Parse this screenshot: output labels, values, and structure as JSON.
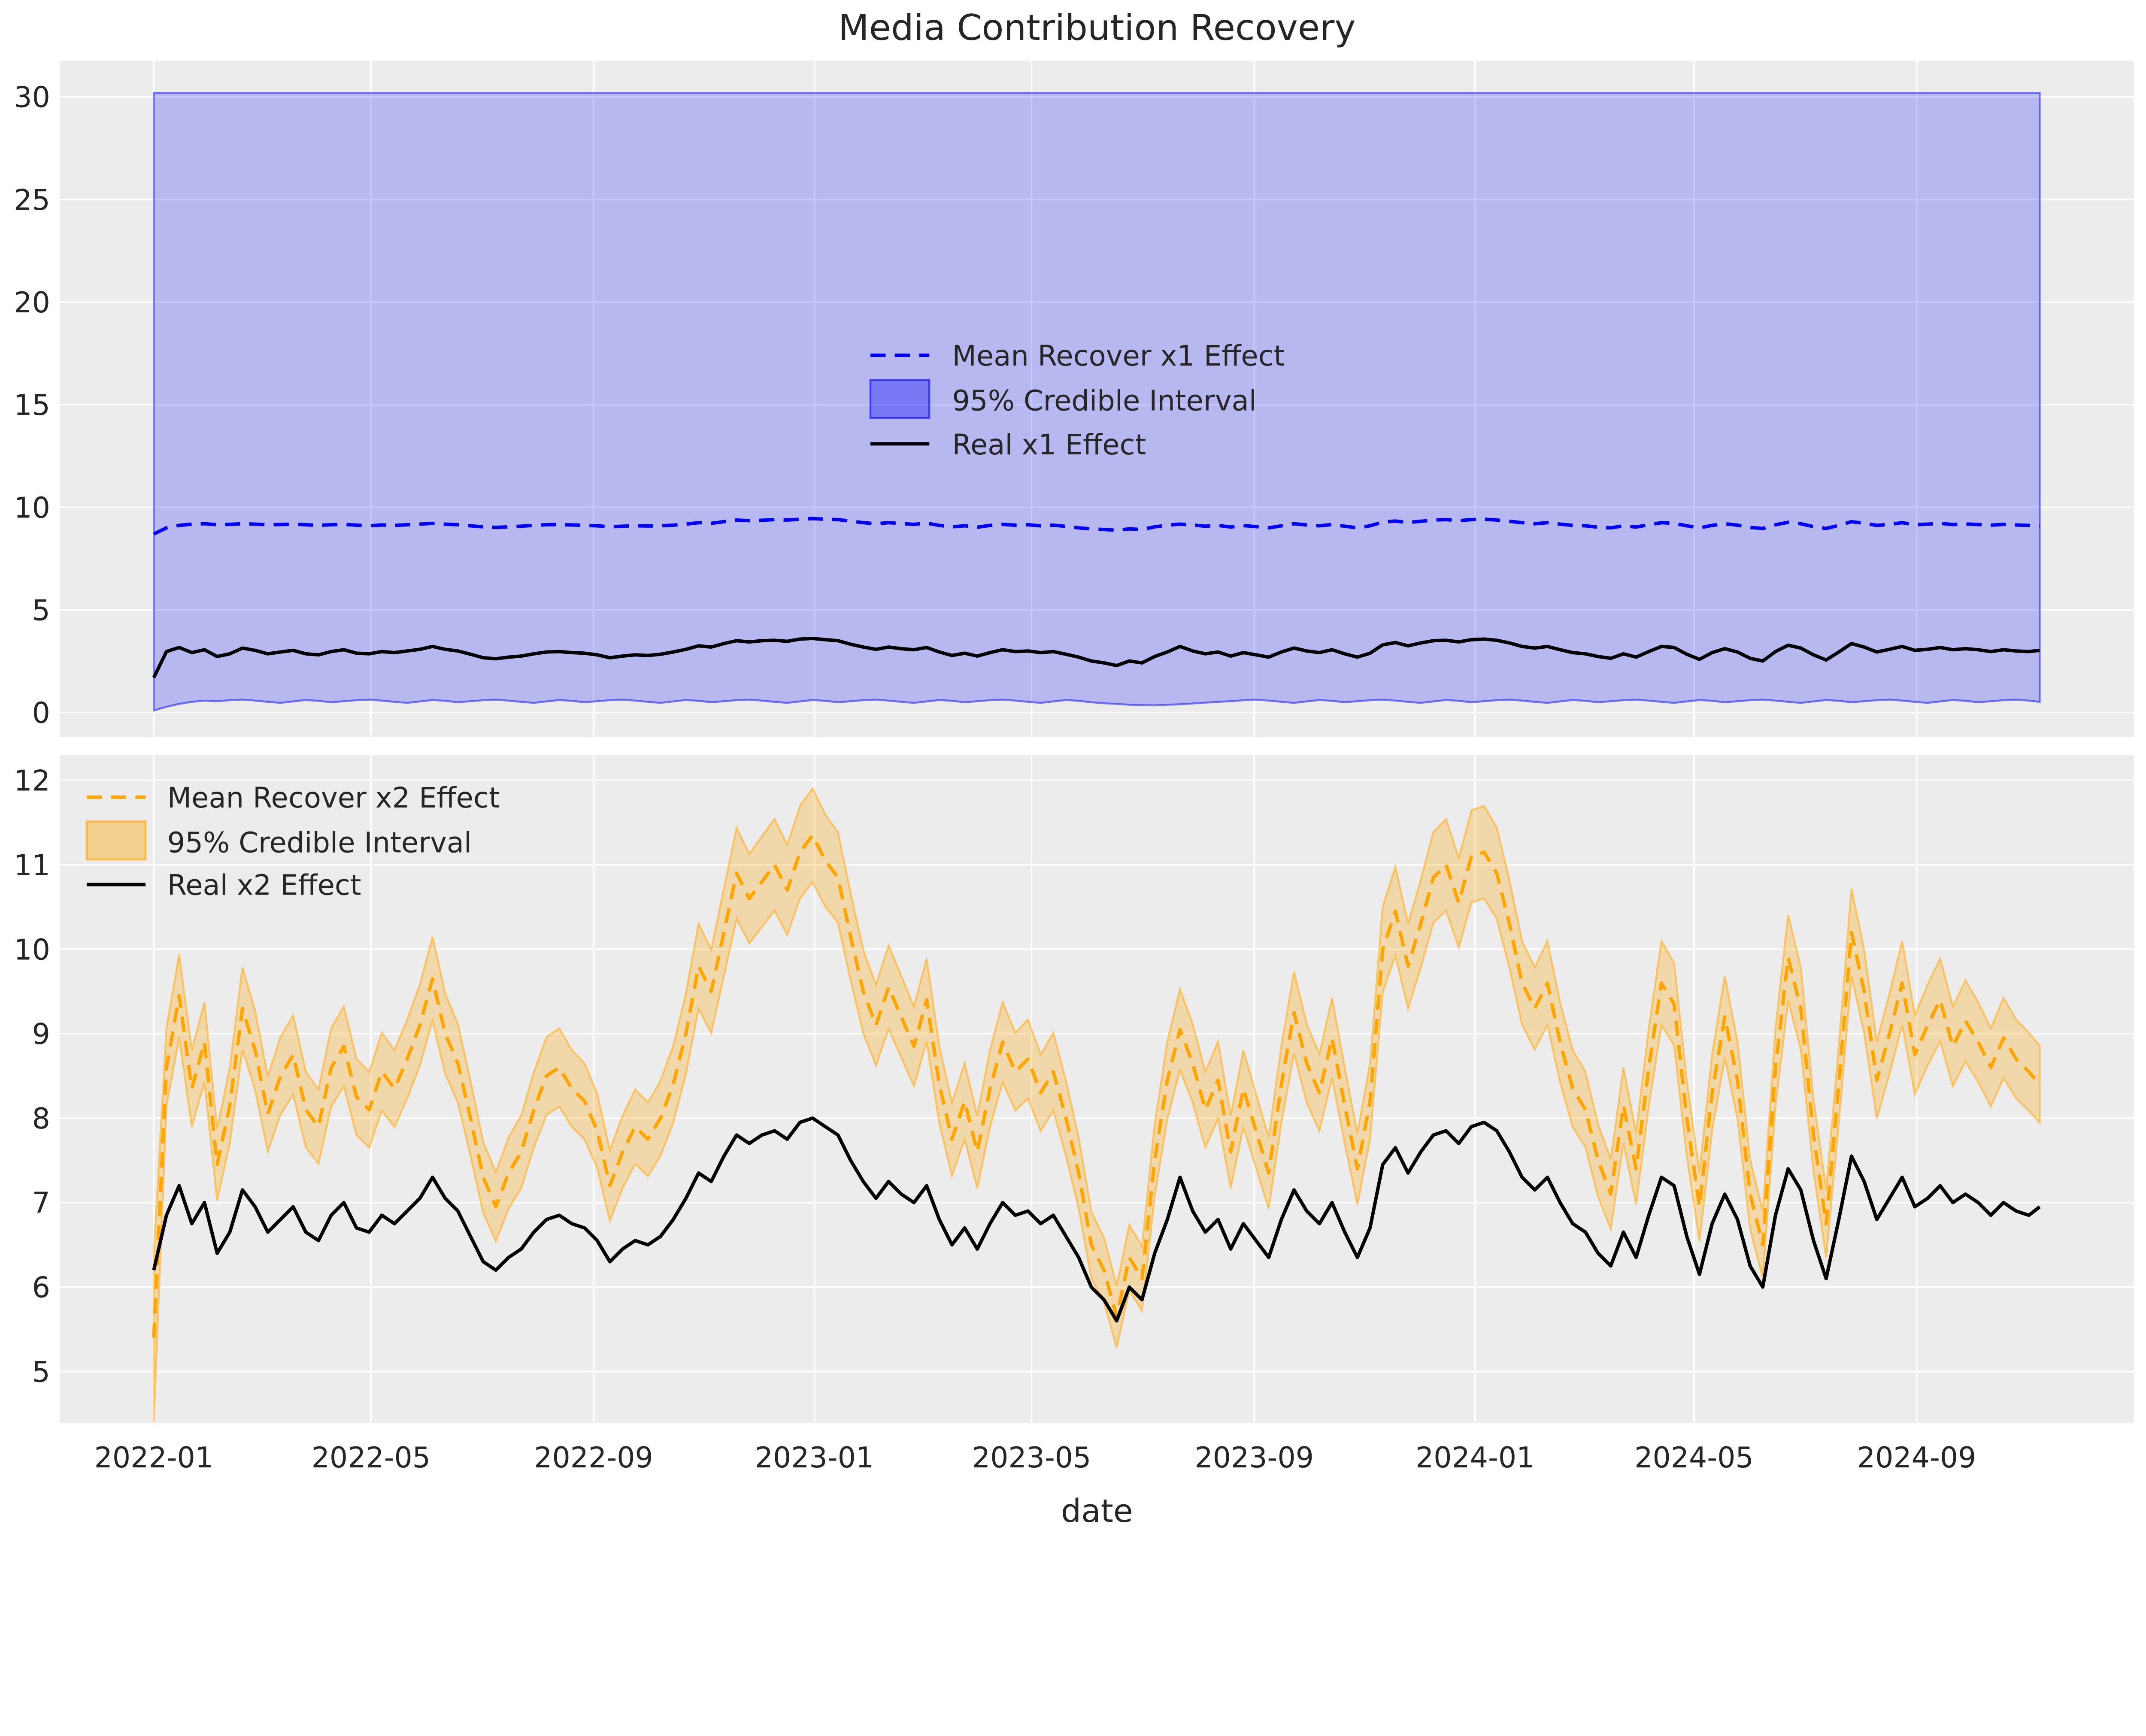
{
  "title": "Media Contribution Recovery",
  "xlabel": "date",
  "colors": {
    "figure_background": "#ffffff",
    "axes_background": "#ececec",
    "grid": "#ffffff",
    "tick_text": "#262626",
    "x1_mean_line": "#0000ff",
    "x2_mean_line": "#ffa500",
    "real_line": "#000000"
  },
  "x_days": [
    0,
    7,
    14,
    21,
    28,
    35,
    42,
    49,
    56,
    63,
    70,
    77,
    84,
    91,
    98,
    105,
    112,
    119,
    126,
    133,
    140,
    147,
    154,
    161,
    168,
    175,
    182,
    189,
    196,
    203,
    210,
    217,
    224,
    231,
    238,
    245,
    252,
    259,
    266,
    273,
    280,
    287,
    294,
    301,
    308,
    315,
    322,
    329,
    336,
    343,
    350,
    357,
    364,
    371,
    378,
    385,
    392,
    399,
    406,
    413,
    420,
    427,
    434,
    441,
    448,
    455,
    462,
    469,
    476,
    483,
    490,
    497,
    504,
    511,
    518,
    525,
    532,
    539,
    546,
    553,
    560,
    567,
    574,
    581,
    588,
    595,
    602,
    609,
    616,
    623,
    630,
    637,
    644,
    651,
    658,
    665,
    672,
    679,
    686,
    693,
    700,
    707,
    714,
    721,
    728,
    735,
    742,
    749,
    756,
    763,
    770,
    777,
    784,
    791,
    798,
    805,
    812,
    819,
    826,
    833,
    840,
    847,
    854,
    861,
    868,
    875,
    882,
    889,
    896,
    903,
    910,
    917,
    924,
    931,
    938,
    945,
    952,
    959,
    966,
    973,
    980,
    987,
    994,
    1001,
    1008,
    1015,
    1022,
    1029,
    1036,
    1042
  ],
  "chart_data": [
    {
      "type": "line",
      "panel": "top",
      "ylim": [
        -1.2,
        31.76
      ],
      "yticks": [
        0,
        5,
        10,
        15,
        20,
        25,
        30
      ],
      "xlim_days": [
        -52,
        1094
      ],
      "xtick_days": [
        0,
        120,
        243,
        365,
        485,
        608,
        730,
        851,
        974
      ],
      "xtick_labels": [
        "2022-01",
        "2022-05",
        "2022-09",
        "2023-01",
        "2023-05",
        "2023-09",
        "2024-01",
        "2024-05",
        "2024-09"
      ],
      "show_xtick_labels": false,
      "grid": true,
      "legend_position": "center",
      "series": [
        {
          "name": "Mean Recover x1 Effect",
          "style": "dashed",
          "color": "#0000ff",
          "values": [
            8.7,
            9.0,
            9.12,
            9.18,
            9.2,
            9.15,
            9.17,
            9.2,
            9.18,
            9.15,
            9.16,
            9.18,
            9.15,
            9.12,
            9.15,
            9.17,
            9.13,
            9.1,
            9.14,
            9.12,
            9.15,
            9.18,
            9.22,
            9.18,
            9.15,
            9.1,
            9.05,
            9.02,
            9.05,
            9.08,
            9.12,
            9.15,
            9.16,
            9.14,
            9.12,
            9.1,
            9.05,
            9.08,
            9.1,
            9.09,
            9.1,
            9.13,
            9.18,
            9.25,
            9.22,
            9.3,
            9.38,
            9.35,
            9.37,
            9.4,
            9.38,
            9.42,
            9.45,
            9.42,
            9.4,
            9.33,
            9.25,
            9.2,
            9.25,
            9.21,
            9.17,
            9.23,
            9.12,
            9.05,
            9.1,
            9.03,
            9.12,
            9.17,
            9.13,
            9.15,
            9.1,
            9.13,
            9.07,
            9.0,
            8.95,
            8.92,
            8.88,
            8.95,
            8.92,
            9.05,
            9.13,
            9.18,
            9.14,
            9.08,
            9.12,
            9.04,
            9.11,
            9.06,
            9.0,
            9.1,
            9.2,
            9.14,
            9.1,
            9.16,
            9.08,
            9.0,
            9.1,
            9.28,
            9.33,
            9.26,
            9.32,
            9.38,
            9.4,
            9.35,
            9.4,
            9.42,
            9.38,
            9.32,
            9.25,
            9.2,
            9.25,
            9.18,
            9.12,
            9.1,
            9.03,
            9.0,
            9.1,
            9.04,
            9.15,
            9.25,
            9.22,
            9.1,
            9.0,
            9.12,
            9.2,
            9.13,
            9.02,
            8.97,
            9.15,
            9.27,
            9.2,
            9.06,
            8.97,
            9.12,
            9.3,
            9.22,
            9.12,
            9.17,
            9.25,
            9.15,
            9.18,
            9.22,
            9.16,
            9.19,
            9.16,
            9.13,
            9.17,
            9.14,
            9.12,
            9.1
          ]
        },
        {
          "name": "95% Credible Interval",
          "type": "band",
          "color": "#0000ff",
          "fill_opacity": 0.22,
          "upper_const": 30.2,
          "lower": [
            0.1,
            0.28,
            0.42,
            0.52,
            0.58,
            0.55,
            0.6,
            0.63,
            0.58,
            0.52,
            0.47,
            0.54,
            0.61,
            0.57,
            0.5,
            0.55,
            0.6,
            0.63,
            0.58,
            0.52,
            0.47,
            0.54,
            0.61,
            0.57,
            0.5,
            0.55,
            0.6,
            0.63,
            0.58,
            0.52,
            0.47,
            0.54,
            0.61,
            0.57,
            0.5,
            0.55,
            0.6,
            0.63,
            0.58,
            0.52,
            0.47,
            0.54,
            0.61,
            0.57,
            0.5,
            0.55,
            0.6,
            0.63,
            0.58,
            0.52,
            0.47,
            0.54,
            0.61,
            0.57,
            0.5,
            0.55,
            0.6,
            0.63,
            0.58,
            0.52,
            0.47,
            0.54,
            0.61,
            0.57,
            0.5,
            0.55,
            0.6,
            0.63,
            0.58,
            0.52,
            0.47,
            0.54,
            0.61,
            0.57,
            0.5,
            0.45,
            0.42,
            0.38,
            0.36,
            0.35,
            0.38,
            0.4,
            0.44,
            0.48,
            0.52,
            0.55,
            0.6,
            0.63,
            0.58,
            0.52,
            0.47,
            0.54,
            0.61,
            0.57,
            0.5,
            0.55,
            0.6,
            0.63,
            0.58,
            0.52,
            0.47,
            0.54,
            0.61,
            0.57,
            0.5,
            0.55,
            0.6,
            0.63,
            0.58,
            0.52,
            0.47,
            0.54,
            0.61,
            0.57,
            0.5,
            0.55,
            0.6,
            0.63,
            0.58,
            0.52,
            0.47,
            0.54,
            0.61,
            0.57,
            0.5,
            0.55,
            0.6,
            0.63,
            0.58,
            0.52,
            0.47,
            0.54,
            0.61,
            0.57,
            0.5,
            0.55,
            0.6,
            0.63,
            0.58,
            0.52,
            0.47,
            0.54,
            0.61,
            0.57,
            0.5,
            0.55,
            0.6,
            0.63,
            0.58,
            0.52
          ]
        },
        {
          "name": "Real x1 Effect",
          "style": "solid",
          "color": "#000000",
          "values": [
            1.7,
            2.97,
            3.17,
            2.92,
            3.06,
            2.73,
            2.86,
            3.14,
            3.03,
            2.86,
            2.95,
            3.03,
            2.86,
            2.81,
            2.97,
            3.06,
            2.89,
            2.86,
            2.97,
            2.92,
            3.0,
            3.08,
            3.22,
            3.08,
            3.0,
            2.84,
            2.67,
            2.62,
            2.7,
            2.75,
            2.86,
            2.95,
            2.97,
            2.92,
            2.89,
            2.81,
            2.67,
            2.75,
            2.81,
            2.78,
            2.84,
            2.95,
            3.08,
            3.25,
            3.19,
            3.36,
            3.5,
            3.44,
            3.5,
            3.52,
            3.47,
            3.58,
            3.61,
            3.55,
            3.5,
            3.33,
            3.19,
            3.08,
            3.19,
            3.11,
            3.06,
            3.17,
            2.95,
            2.78,
            2.89,
            2.75,
            2.92,
            3.06,
            2.97,
            3.0,
            2.92,
            2.97,
            2.84,
            2.7,
            2.51,
            2.42,
            2.29,
            2.51,
            2.42,
            2.73,
            2.95,
            3.22,
            3.0,
            2.86,
            2.95,
            2.75,
            2.92,
            2.81,
            2.7,
            2.95,
            3.14,
            3.0,
            2.92,
            3.06,
            2.86,
            2.7,
            2.89,
            3.3,
            3.41,
            3.25,
            3.39,
            3.5,
            3.52,
            3.44,
            3.55,
            3.58,
            3.52,
            3.39,
            3.22,
            3.14,
            3.22,
            3.06,
            2.92,
            2.86,
            2.73,
            2.64,
            2.86,
            2.7,
            2.97,
            3.22,
            3.17,
            2.84,
            2.59,
            2.92,
            3.11,
            2.95,
            2.64,
            2.51,
            2.97,
            3.28,
            3.14,
            2.81,
            2.56,
            2.95,
            3.36,
            3.19,
            2.95,
            3.08,
            3.22,
            3.03,
            3.08,
            3.17,
            3.06,
            3.11,
            3.06,
            2.97,
            3.06,
            3.0,
            2.97,
            3.03
          ]
        }
      ]
    },
    {
      "type": "line",
      "panel": "bottom",
      "ylim": [
        4.39,
        12.3
      ],
      "yticks": [
        5,
        6,
        7,
        8,
        9,
        10,
        11,
        12
      ],
      "xlim_days": [
        -52,
        1094
      ],
      "xtick_days": [
        0,
        120,
        243,
        365,
        485,
        608,
        730,
        851,
        974
      ],
      "xtick_labels": [
        "2022-01",
        "2022-05",
        "2022-09",
        "2023-01",
        "2023-05",
        "2023-09",
        "2024-01",
        "2024-05",
        "2024-09"
      ],
      "show_xtick_labels": true,
      "grid": true,
      "legend_position": "upper left",
      "series": [
        {
          "name": "Mean Recover x2 Effect",
          "style": "dashed",
          "color": "#ffa500",
          "values": [
            5.4,
            8.6,
            9.45,
            8.35,
            8.9,
            7.45,
            8.15,
            9.3,
            8.8,
            8.05,
            8.5,
            8.75,
            8.1,
            7.9,
            8.6,
            8.85,
            8.25,
            8.1,
            8.55,
            8.35,
            8.7,
            9.1,
            9.65,
            9.0,
            8.65,
            8.0,
            7.3,
            6.95,
            7.35,
            7.6,
            8.1,
            8.5,
            8.6,
            8.35,
            8.2,
            7.85,
            7.2,
            7.6,
            7.9,
            7.75,
            8.0,
            8.4,
            9.0,
            9.8,
            9.5,
            10.2,
            10.9,
            10.6,
            10.8,
            11.0,
            10.7,
            11.15,
            11.35,
            11.05,
            10.85,
            10.15,
            9.5,
            9.1,
            9.55,
            9.2,
            8.85,
            9.4,
            8.4,
            7.75,
            8.2,
            7.6,
            8.35,
            8.9,
            8.55,
            8.7,
            8.3,
            8.55,
            8.0,
            7.35,
            6.5,
            6.2,
            5.65,
            6.35,
            6.1,
            7.5,
            8.45,
            9.05,
            8.65,
            8.1,
            8.45,
            7.6,
            8.35,
            7.85,
            7.35,
            8.4,
            9.25,
            8.65,
            8.3,
            8.95,
            8.15,
            7.4,
            8.2,
            10.0,
            10.45,
            9.8,
            10.3,
            10.85,
            11.0,
            10.55,
            11.1,
            11.15,
            10.9,
            10.3,
            9.6,
            9.3,
            9.6,
            8.9,
            8.35,
            8.1,
            7.5,
            7.1,
            8.15,
            7.4,
            8.6,
            9.6,
            9.35,
            8.0,
            6.95,
            8.3,
            9.2,
            8.45,
            7.1,
            6.5,
            8.6,
            9.9,
            9.3,
            7.8,
            6.75,
            8.4,
            10.2,
            9.5,
            8.45,
            9.0,
            9.6,
            8.75,
            9.1,
            9.4,
            8.85,
            9.15,
            8.9,
            8.6,
            8.95,
            8.7,
            8.55,
            8.4
          ]
        },
        {
          "name": "95% Credible Interval",
          "type": "band",
          "color": "#ffa500",
          "fill_opacity": 0.28,
          "half_width_k0": 0.18,
          "half_width_k1": 0.033,
          "half_width_first": 1.0
        },
        {
          "name": "Real x2 Effect",
          "style": "solid",
          "color": "#000000",
          "values": [
            6.2,
            6.85,
            7.2,
            6.75,
            7.0,
            6.4,
            6.65,
            7.15,
            6.95,
            6.65,
            6.8,
            6.95,
            6.65,
            6.55,
            6.85,
            7.0,
            6.7,
            6.65,
            6.85,
            6.75,
            6.9,
            7.05,
            7.3,
            7.05,
            6.9,
            6.6,
            6.3,
            6.2,
            6.35,
            6.45,
            6.65,
            6.8,
            6.85,
            6.75,
            6.7,
            6.55,
            6.3,
            6.45,
            6.55,
            6.5,
            6.6,
            6.8,
            7.05,
            7.35,
            7.25,
            7.55,
            7.8,
            7.7,
            7.8,
            7.85,
            7.75,
            7.95,
            8.0,
            7.9,
            7.8,
            7.5,
            7.25,
            7.05,
            7.25,
            7.1,
            7.0,
            7.2,
            6.8,
            6.5,
            6.7,
            6.45,
            6.75,
            7.0,
            6.85,
            6.9,
            6.75,
            6.85,
            6.6,
            6.35,
            6.0,
            5.85,
            5.6,
            6.0,
            5.85,
            6.4,
            6.8,
            7.3,
            6.9,
            6.65,
            6.8,
            6.45,
            6.75,
            6.55,
            6.35,
            6.8,
            7.15,
            6.9,
            6.75,
            7.0,
            6.65,
            6.35,
            6.7,
            7.45,
            7.65,
            7.35,
            7.6,
            7.8,
            7.85,
            7.7,
            7.9,
            7.95,
            7.85,
            7.6,
            7.3,
            7.15,
            7.3,
            7.0,
            6.75,
            6.65,
            6.4,
            6.25,
            6.65,
            6.35,
            6.85,
            7.3,
            7.2,
            6.6,
            6.15,
            6.75,
            7.1,
            6.8,
            6.25,
            6.0,
            6.85,
            7.4,
            7.15,
            6.55,
            6.1,
            6.8,
            7.55,
            7.25,
            6.8,
            7.05,
            7.3,
            6.95,
            7.05,
            7.2,
            7.0,
            7.1,
            7.0,
            6.85,
            7.0,
            6.9,
            6.85,
            6.95
          ]
        }
      ]
    }
  ]
}
